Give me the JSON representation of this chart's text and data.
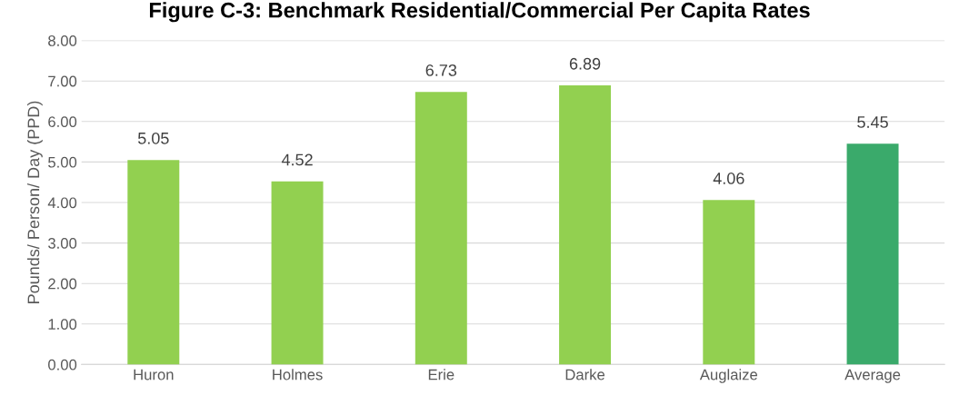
{
  "chart_data": {
    "type": "bar",
    "title": "Figure C-3: Benchmark Residential/Commercial Per Capita Rates",
    "ylabel": "Pounds/ Person/ Day (PPD)",
    "categories": [
      "Huron",
      "Holmes",
      "Erie",
      "Darke",
      "Auglaize",
      "Average"
    ],
    "values": [
      5.05,
      4.52,
      6.73,
      6.89,
      4.06,
      5.45
    ],
    "colors": [
      "#92d050",
      "#92d050",
      "#92d050",
      "#92d050",
      "#92d050",
      "#3aaa6b"
    ],
    "value_labels": [
      "5.05",
      "4.52",
      "6.73",
      "6.89",
      "4.06",
      "5.45"
    ],
    "ylim": [
      0,
      8
    ],
    "yticks": [
      {
        "value": 0,
        "label": "0.00"
      },
      {
        "value": 1,
        "label": "1.00"
      },
      {
        "value": 2,
        "label": "2.00"
      },
      {
        "value": 3,
        "label": "3.00"
      },
      {
        "value": 4,
        "label": "4.00"
      },
      {
        "value": 5,
        "label": "5.00"
      },
      {
        "value": 6,
        "label": "6.00"
      },
      {
        "value": 7,
        "label": "7.00"
      },
      {
        "value": 8,
        "label": "8.00"
      }
    ],
    "grid": "y",
    "legend": false
  }
}
